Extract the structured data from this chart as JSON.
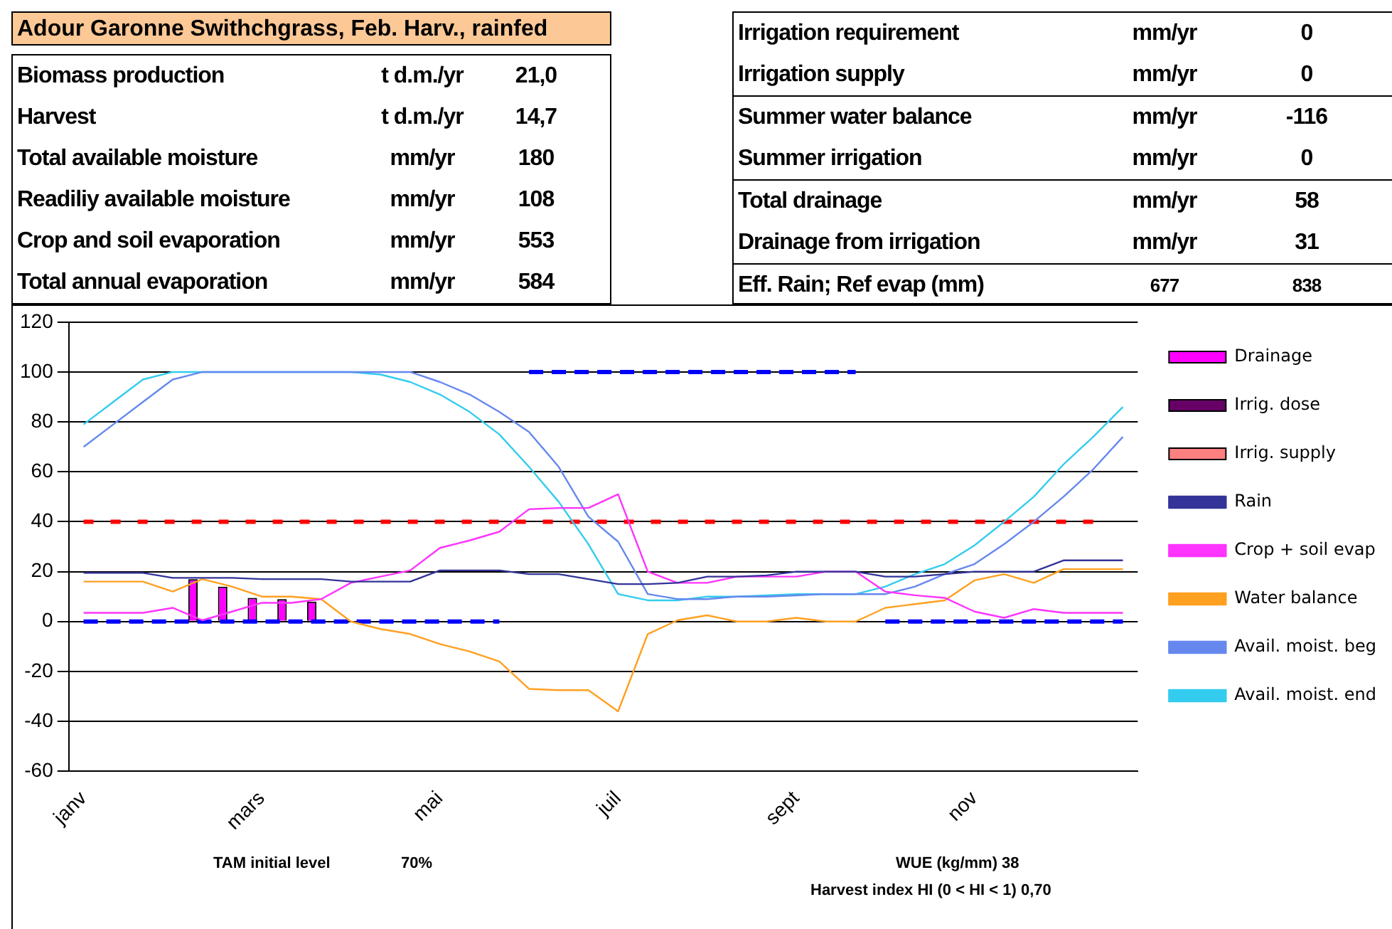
{
  "chart_data": {
    "type": "line",
    "title": "Adour Garonne Swithchgrass, Feb. Harv., rainfed",
    "categories": [
      "janv",
      null,
      null,
      null,
      null,
      null,
      "mars",
      null,
      null,
      null,
      null,
      null,
      "mai",
      null,
      null,
      null,
      null,
      null,
      "juil",
      null,
      null,
      null,
      null,
      null,
      "sept",
      null,
      null,
      null,
      null,
      null,
      "nov",
      null,
      null,
      null,
      null,
      null
    ],
    "series": [
      {
        "type": "bar",
        "name": "Drainage",
        "color": "#ff00ff",
        "values": [
          0,
          0,
          0,
          0,
          17,
          14,
          9.5,
          9,
          8,
          0,
          0,
          0,
          0,
          0,
          0,
          0,
          0,
          0,
          0,
          0,
          0,
          0,
          0,
          0,
          0,
          0,
          0,
          0,
          0,
          0,
          0,
          0,
          0,
          0,
          0,
          0
        ]
      },
      {
        "type": "bar",
        "name": "Irrig. dose",
        "color": "#660066",
        "values": [
          0,
          0,
          0,
          0,
          0,
          0,
          0,
          0,
          0,
          0,
          0,
          0,
          0,
          0,
          0,
          0,
          0,
          0,
          0,
          0,
          0,
          0,
          0,
          0,
          0,
          0,
          0,
          0,
          0,
          0,
          0,
          0,
          0,
          0,
          0,
          0
        ]
      },
      {
        "type": "bar",
        "name": "Irrig. supply",
        "color": "#ff8080",
        "values": [
          0,
          0,
          0,
          0,
          0,
          0,
          0,
          0,
          0,
          0,
          0,
          0,
          0,
          0,
          0,
          0,
          0,
          0,
          0,
          0,
          0,
          0,
          0,
          0,
          0,
          0,
          0,
          0,
          0,
          0,
          0,
          0,
          0,
          0,
          0,
          0
        ]
      },
      {
        "name": "Rain",
        "color": "#333399",
        "values": [
          19.5,
          19.5,
          19.5,
          17.5,
          17.5,
          17.5,
          17,
          17,
          17,
          16,
          16,
          16,
          20.5,
          20.5,
          20.5,
          19,
          19,
          17,
          15,
          15,
          15.5,
          18,
          18,
          18.5,
          20,
          20,
          20,
          18,
          18,
          19,
          20,
          20,
          20,
          24.5,
          24.5,
          24.5
        ]
      },
      {
        "name": "Crop + soil evap",
        "color": "#ff33ff",
        "values": [
          3.5,
          3.5,
          3.5,
          5.5,
          0.5,
          4,
          7.5,
          7.5,
          9,
          15.5,
          18,
          20.5,
          29.5,
          32.5,
          36,
          45,
          45.5,
          45.5,
          51,
          20,
          15.5,
          15.5,
          18,
          18,
          18,
          20,
          20,
          12,
          10.5,
          9.5,
          4,
          1.5,
          5,
          3.5,
          3.5,
          3.5
        ]
      },
      {
        "name": "Water balance",
        "color": "#ffa020",
        "values": [
          16,
          16,
          16,
          12,
          17,
          14,
          10,
          10,
          9,
          0,
          -3,
          -5,
          -9,
          -12,
          -16,
          -27,
          -27.5,
          -27.5,
          -36,
          -5,
          0.5,
          2.5,
          0,
          0,
          1.5,
          0,
          0,
          5.5,
          7,
          8.5,
          16.5,
          19,
          15.5,
          21,
          21,
          21
        ]
      },
      {
        "name": "Avail. moist. beg",
        "color": "#6688ee",
        "values": [
          70,
          79,
          88,
          97,
          100,
          100,
          100,
          100,
          100,
          100,
          100,
          100,
          96,
          91,
          84,
          76,
          62,
          42,
          32,
          11,
          9,
          9,
          10,
          10,
          10.5,
          11,
          11,
          11,
          14,
          19,
          23,
          31,
          40,
          50,
          61,
          74
        ]
      },
      {
        "name": "Avail. moist. end",
        "color": "#33ccee",
        "values": [
          79,
          88,
          97,
          100,
          100,
          100,
          100,
          100,
          100,
          100,
          99,
          96,
          91,
          84,
          75,
          62,
          48,
          31,
          11,
          8.5,
          8.5,
          10,
          10,
          10.5,
          11,
          11,
          11,
          14,
          19,
          23,
          30.5,
          40,
          50,
          63,
          74,
          86
        ]
      },
      {
        "color": "#0000ff",
        "line_style": "dashed",
        "values": [
          0,
          0,
          0,
          0,
          0,
          0,
          0,
          0,
          0,
          0,
          0,
          0,
          0,
          0,
          0,
          null,
          null,
          null,
          null,
          null,
          null,
          null,
          null,
          null,
          null,
          null,
          null,
          0,
          0,
          0,
          0,
          0,
          0,
          0,
          0,
          0
        ]
      },
      {
        "color": "#0000ff",
        "line_style": "dashed",
        "values": [
          null,
          null,
          null,
          null,
          null,
          null,
          null,
          null,
          null,
          null,
          null,
          null,
          null,
          null,
          null,
          100,
          100,
          100,
          100,
          100,
          100,
          100,
          100,
          100,
          100,
          100,
          100,
          null,
          null,
          null,
          null,
          null,
          null,
          null,
          null,
          null
        ]
      },
      {
        "color": "#ff0000",
        "line_style": "dotted",
        "values": [
          40,
          40,
          40,
          40,
          40,
          40,
          40,
          40,
          40,
          40,
          40,
          40,
          40,
          40,
          40,
          40,
          40,
          40,
          40,
          40,
          40,
          40,
          40,
          40,
          40,
          40,
          40,
          40,
          40,
          40,
          40,
          40,
          40,
          40,
          40,
          null
        ]
      }
    ],
    "ylim": [
      -60,
      120
    ],
    "yticks": [
      -60,
      -40,
      -20,
      0,
      20,
      40,
      60,
      80,
      100,
      120
    ],
    "grid": "y",
    "legend": "right",
    "marker": "none",
    "annotations": [
      "Biomass production",
      "t d.m./yr",
      "21,0",
      "Harvest",
      "t d.m./yr",
      "14,7",
      "Total available moisture",
      "mm/yr",
      "180",
      "Readiliy available moisture",
      "mm/yr",
      "108",
      "Crop and soil evaporation",
      "mm/yr",
      "553",
      "Total annual evaporation",
      "mm/yr",
      "584",
      "Irrigation requirement",
      "mm/yr",
      "0",
      "Irrigation supply",
      "mm/yr",
      "0",
      "Summer water balance",
      "mm/yr",
      "-116",
      "Summer irrigation",
      "mm/yr",
      "0",
      "Total drainage",
      "mm/yr",
      "58",
      "Drainage from irrigation",
      "mm/yr",
      "31",
      "Eff. Rain; Ref evap (mm)",
      "677",
      "838",
      "TAM initial level",
      "70%",
      "WUE (kg/mm) 38",
      "Harvest index HI (0 < HI < 1) 0,70"
    ]
  }
}
